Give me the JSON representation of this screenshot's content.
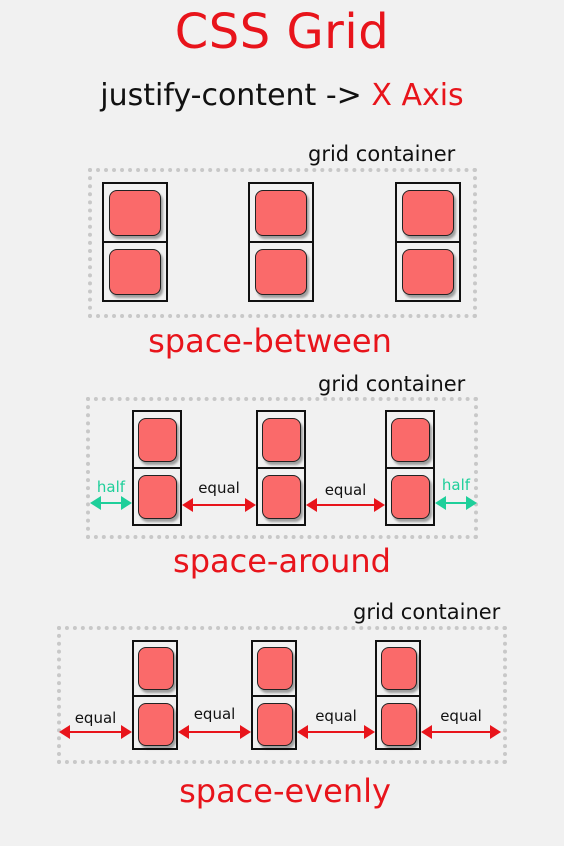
{
  "title": "CSS Grid",
  "subtitle": {
    "prefix": "justify-content ->",
    "axis": "X Axis"
  },
  "container_label": "grid container",
  "sections": {
    "between": {
      "caption": "space-between"
    },
    "around": {
      "caption": "space-around",
      "half": "half",
      "equal": "equal"
    },
    "evenly": {
      "caption": "space-evenly",
      "equal": "equal"
    }
  },
  "colors": {
    "accent": "#e8141b",
    "item": "#fa6a6a",
    "half_arrow": "#1ecf9a"
  }
}
